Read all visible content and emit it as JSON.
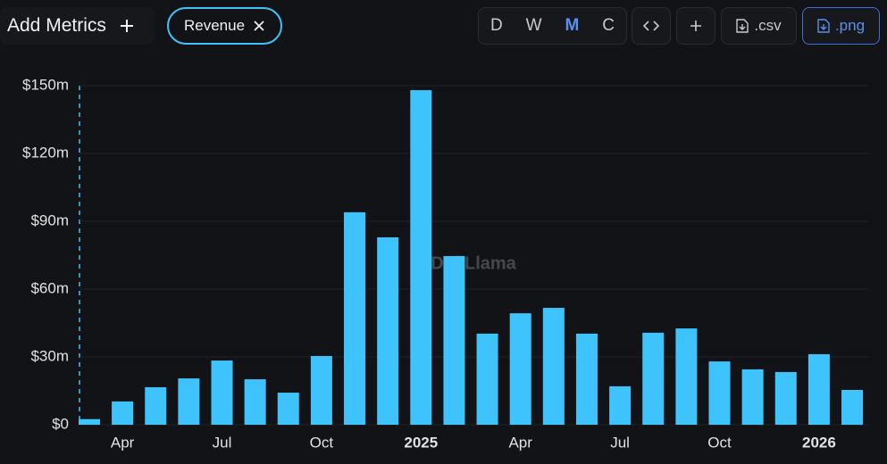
{
  "toolbar": {
    "add_metrics": "Add Metrics",
    "metric": "Revenue",
    "intervals": [
      "D",
      "W",
      "M",
      "C"
    ],
    "active_interval": "M",
    "csv": ".csv",
    "png": ".png"
  },
  "chart_data": {
    "type": "bar",
    "watermark": "DefiLlama",
    "categories": [
      null,
      "Apr",
      null,
      null,
      "Jul",
      null,
      null,
      "Oct",
      null,
      null,
      "2025",
      null,
      null,
      "Apr",
      null,
      null,
      "Jul",
      null,
      null,
      "Oct",
      null,
      null,
      "2026",
      null
    ],
    "values": [
      2.5,
      10.3,
      16.6,
      20.5,
      28.4,
      20.1,
      14.2,
      30.4,
      94,
      82.9,
      148,
      74.6,
      40.3,
      49.3,
      51.7,
      40.3,
      17,
      40.7,
      42.6,
      28,
      24.5,
      23.3,
      31.2,
      15.4
    ],
    "color": "#3fc3fd",
    "ylim": [
      0,
      150
    ],
    "yticks": [
      {
        "value": 0,
        "label": "$0"
      },
      {
        "value": 30,
        "label": "$30m"
      },
      {
        "value": 60,
        "label": "$60m"
      },
      {
        "value": 90,
        "label": "$90m"
      },
      {
        "value": 120,
        "label": "$120m"
      },
      {
        "value": 150,
        "label": "$150m"
      }
    ],
    "grid": true
  }
}
